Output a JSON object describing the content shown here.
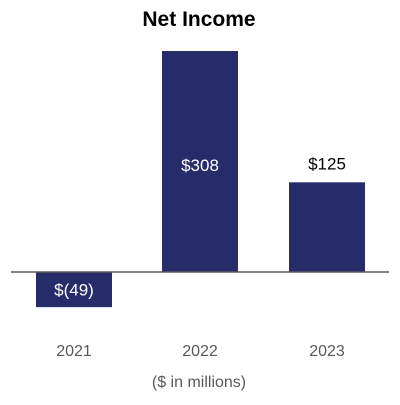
{
  "chart_data": {
    "type": "bar",
    "title": "Net Income",
    "categories": [
      "2021",
      "2022",
      "2023"
    ],
    "values": [
      -49,
      308,
      125
    ],
    "data_labels": [
      "$(49)",
      "$308",
      "$125"
    ],
    "unit_note": "($ in millions)",
    "xlabel": "",
    "ylabel": "",
    "ylim": [
      -49,
      308
    ],
    "grid": false,
    "legend": "none",
    "colors": {
      "bar": "#262C6A",
      "axis": "#595959"
    }
  }
}
